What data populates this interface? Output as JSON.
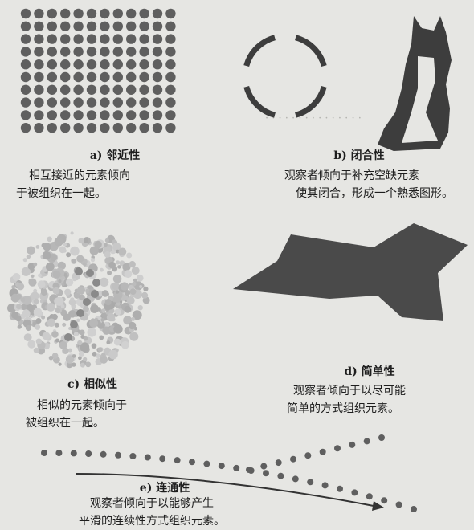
{
  "panels": {
    "a": {
      "title": "a) 邻近性",
      "desc_lines": [
        "相互接近的元素倾向",
        "于被组织在一起。"
      ]
    },
    "b": {
      "title": "b) 闭合性",
      "desc_lines": [
        "观察者倾向于补充空缺元素",
        "使其闭合，形成一个熟悉图形。"
      ]
    },
    "c": {
      "title": "c) 相似性",
      "desc_lines": [
        "相似的元素倾向于",
        "被组织在一起。"
      ]
    },
    "d": {
      "title": "d) 简单性",
      "desc_lines": [
        "观察者倾向于以尽可能",
        "简单的方式组织元素。"
      ]
    },
    "e": {
      "title": "e) 连通性",
      "desc_lines": [
        "观察者倾向于以能够产生",
        "平滑的连续性方式组织元素。"
      ]
    }
  },
  "colors": {
    "background": "#e6e6e3",
    "dark_dot": "#5f5f5f",
    "shape": "#4a4a4a",
    "light_dot": "#b9b9b9"
  }
}
